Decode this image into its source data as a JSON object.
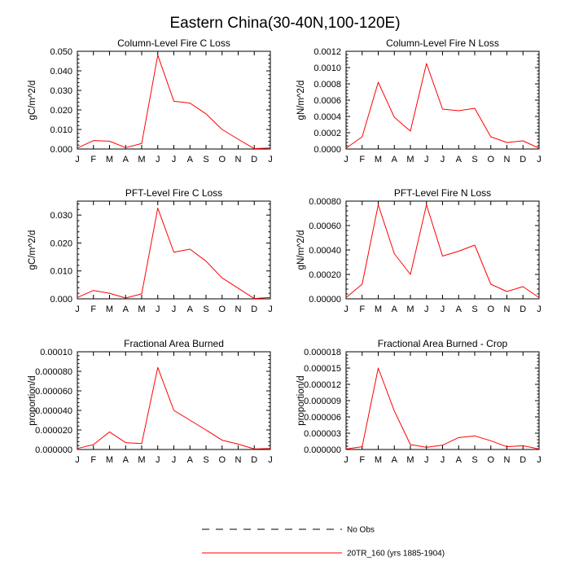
{
  "title": "Eastern China(30-40N,100-120E)",
  "legend": {
    "items": [
      {
        "label": "No Obs",
        "color": "#000000",
        "dash": true
      },
      {
        "label": "20TR_160 (yrs 1885-1904)",
        "color": "#ff0000",
        "dash": false
      }
    ]
  },
  "chart_data": [
    {
      "type": "line",
      "title": "Column-Level Fire C Loss",
      "ylabel": "gC/m^2/d",
      "x": [
        "J",
        "F",
        "M",
        "A",
        "M",
        "J",
        "J",
        "A",
        "S",
        "O",
        "N",
        "D",
        "J"
      ],
      "ylim": [
        0,
        0.05
      ],
      "yticks": [
        0,
        0.01,
        0.02,
        0.03,
        0.04,
        0.05
      ],
      "ytick_labels": [
        "0.000",
        "0.010",
        "0.020",
        "0.030",
        "0.040",
        "0.050"
      ],
      "series": [
        {
          "values": [
            0.0005,
            0.0043,
            0.004,
            0.0007,
            0.0028,
            0.048,
            0.0245,
            0.0235,
            0.018,
            0.01,
            0.005,
            0.0002,
            0.0005
          ],
          "color": "#ff0000"
        }
      ]
    },
    {
      "type": "line",
      "title": "Column-Level Fire N Loss",
      "ylabel": "gN/m^2/d",
      "x": [
        "J",
        "F",
        "M",
        "A",
        "M",
        "J",
        "J",
        "A",
        "S",
        "O",
        "N",
        "D",
        "J"
      ],
      "ylim": [
        0,
        0.0012
      ],
      "yticks": [
        0,
        0.0002,
        0.0004,
        0.0006,
        0.0008,
        0.001,
        0.0012
      ],
      "ytick_labels": [
        "0.0000",
        "0.0002",
        "0.0004",
        "0.0006",
        "0.0008",
        "0.0010",
        "0.0012"
      ],
      "series": [
        {
          "values": [
            1e-05,
            0.00015,
            0.00082,
            0.00039,
            0.00022,
            0.00105,
            0.00049,
            0.00047,
            0.0005,
            0.00015,
            8e-05,
            0.0001,
            1e-05
          ],
          "color": "#ff0000"
        }
      ]
    },
    {
      "type": "line",
      "title": "PFT-Level Fire C Loss",
      "ylabel": "gC/m^2/d",
      "x": [
        "J",
        "F",
        "M",
        "A",
        "M",
        "J",
        "J",
        "A",
        "S",
        "O",
        "N",
        "D",
        "J"
      ],
      "ylim": [
        0,
        0.035
      ],
      "yticks": [
        0,
        0.01,
        0.02,
        0.03
      ],
      "ytick_labels": [
        "0.000",
        "0.010",
        "0.020",
        "0.030"
      ],
      "series": [
        {
          "values": [
            0.0005,
            0.003,
            0.002,
            0.0003,
            0.0018,
            0.0325,
            0.0167,
            0.0178,
            0.0135,
            0.0075,
            0.0038,
            0.0001,
            0.0005
          ],
          "color": "#ff0000"
        }
      ]
    },
    {
      "type": "line",
      "title": "PFT-Level Fire N Loss",
      "ylabel": "gN/m^2/d",
      "x": [
        "J",
        "F",
        "M",
        "A",
        "M",
        "J",
        "J",
        "A",
        "S",
        "O",
        "N",
        "D",
        "J"
      ],
      "ylim": [
        0,
        0.0008
      ],
      "yticks": [
        0,
        0.0002,
        0.0004,
        0.0006,
        0.0008
      ],
      "ytick_labels": [
        "0.00000",
        "0.00020",
        "0.00040",
        "0.00060",
        "0.00080"
      ],
      "series": [
        {
          "values": [
            1e-05,
            0.00012,
            0.00077,
            0.00037,
            0.0002,
            0.00077,
            0.00035,
            0.00039,
            0.00044,
            0.00012,
            6e-05,
            0.0001,
            1e-05
          ],
          "color": "#ff0000"
        }
      ]
    },
    {
      "type": "line",
      "title": "Fractional Area Burned",
      "ylabel": "proportion/d",
      "x": [
        "J",
        "F",
        "M",
        "A",
        "M",
        "J",
        "J",
        "A",
        "S",
        "O",
        "N",
        "D",
        "J"
      ],
      "ylim": [
        0,
        0.0001
      ],
      "yticks": [
        0,
        2e-05,
        4e-05,
        6e-05,
        8e-05,
        0.0001
      ],
      "ytick_labels": [
        "0.000000",
        "0.000020",
        "0.000040",
        "0.000060",
        "0.000080",
        "0.00010"
      ],
      "series": [
        {
          "values": [
            1e-06,
            5e-06,
            1.8e-05,
            7e-06,
            6e-06,
            8.4e-05,
            4e-05,
            3e-05,
            2e-05,
            9.5e-06,
            5.5e-06,
            5e-07,
            1e-06
          ],
          "color": "#ff0000"
        }
      ]
    },
    {
      "type": "line",
      "title": "Fractional Area Burned - Crop",
      "ylabel": "proportion/d",
      "x": [
        "J",
        "F",
        "M",
        "A",
        "M",
        "J",
        "J",
        "A",
        "S",
        "O",
        "N",
        "D",
        "J"
      ],
      "ylim": [
        0,
        1.8e-05
      ],
      "yticks": [
        0,
        3e-06,
        6e-06,
        9e-06,
        1.2e-05,
        1.5e-05,
        1.8e-05
      ],
      "ytick_labels": [
        "0.000000",
        "0.000003",
        "0.000006",
        "0.000009",
        "0.000012",
        "0.000015",
        "0.000018"
      ],
      "series": [
        {
          "values": [
            1e-07,
            5e-07,
            1.5e-05,
            7.1e-06,
            9e-07,
            4e-07,
            8e-07,
            2.2e-06,
            2.5e-06,
            1.6e-06,
            5e-07,
            7e-07,
            1e-07
          ],
          "color": "#ff0000"
        }
      ]
    }
  ]
}
